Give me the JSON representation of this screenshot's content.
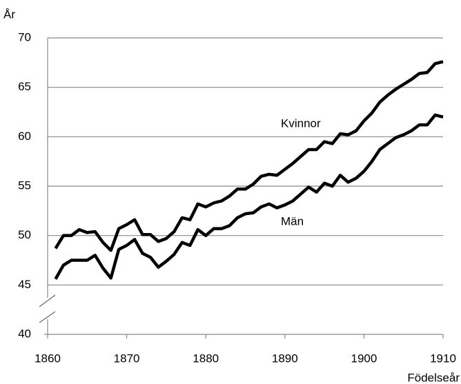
{
  "chart_data": {
    "type": "line",
    "y_label": "År",
    "x_label": "Födelseår",
    "x": [
      1861,
      1862,
      1863,
      1864,
      1865,
      1866,
      1867,
      1868,
      1869,
      1870,
      1871,
      1872,
      1873,
      1874,
      1875,
      1876,
      1877,
      1878,
      1879,
      1880,
      1881,
      1882,
      1883,
      1884,
      1885,
      1886,
      1887,
      1888,
      1889,
      1890,
      1891,
      1892,
      1893,
      1894,
      1895,
      1896,
      1897,
      1898,
      1899,
      1900,
      1901,
      1902,
      1903,
      1904,
      1905,
      1906,
      1907,
      1908,
      1909,
      1910
    ],
    "series": [
      {
        "name": "Kvinnor",
        "color": "#000000",
        "values": [
          48.7,
          50.0,
          50.0,
          50.6,
          50.3,
          50.4,
          49.3,
          48.5,
          50.7,
          51.1,
          51.6,
          50.1,
          50.1,
          49.4,
          49.7,
          50.4,
          51.8,
          51.6,
          53.2,
          52.9,
          53.3,
          53.5,
          54.0,
          54.7,
          54.7,
          55.2,
          56.0,
          56.2,
          56.1,
          56.7,
          57.3,
          58.0,
          58.7,
          58.7,
          59.5,
          59.3,
          60.3,
          60.2,
          60.6,
          61.6,
          62.4,
          63.5,
          64.2,
          64.8,
          65.3,
          65.8,
          66.4,
          66.5,
          67.4,
          67.6
        ]
      },
      {
        "name": "Män",
        "color": "#000000",
        "values": [
          45.6,
          47.0,
          47.5,
          47.5,
          47.5,
          48.0,
          46.7,
          45.7,
          48.6,
          49.0,
          49.6,
          48.2,
          47.8,
          46.8,
          47.4,
          48.1,
          49.3,
          49.0,
          50.6,
          50.0,
          50.7,
          50.7,
          51.0,
          51.8,
          52.2,
          52.3,
          52.9,
          53.2,
          52.8,
          53.1,
          53.5,
          54.2,
          54.9,
          54.4,
          55.3,
          55.0,
          56.1,
          55.4,
          55.8,
          56.5,
          57.5,
          58.7,
          59.3,
          59.9,
          60.2,
          60.6,
          61.2,
          61.2,
          62.2,
          62.0
        ]
      }
    ],
    "xlim": [
      1860,
      1910
    ],
    "xticks": [
      1860,
      1870,
      1880,
      1890,
      1900,
      1910
    ],
    "ylim": [
      40,
      70
    ],
    "yticks": [
      40,
      45,
      50,
      55,
      60,
      65,
      70
    ],
    "grid": true
  }
}
